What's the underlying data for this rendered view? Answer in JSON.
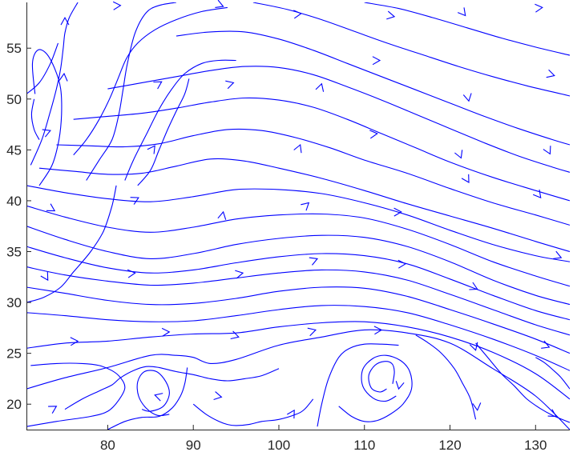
{
  "chart_data": {
    "type": "streamline",
    "title": "",
    "xlabel": "",
    "ylabel": "",
    "xlim": [
      70.5,
      134
    ],
    "ylim": [
      17.5,
      59.5
    ],
    "x_ticks": [
      80,
      90,
      100,
      110,
      120,
      130
    ],
    "y_ticks": [
      20,
      25,
      30,
      35,
      40,
      45,
      50,
      55
    ],
    "grid": false,
    "color": "#0000ff",
    "series": [
      {
        "x": [
          70.5,
          75,
          80,
          85,
          88,
          90,
          92,
          95,
          100,
          105,
          110,
          115,
          120,
          125,
          130,
          134
        ],
        "y": [
          21.5,
          22.6,
          23.6,
          24.8,
          24.8,
          24.6,
          24.0,
          24.4,
          25.8,
          26.6,
          27.3,
          27.0,
          26.0,
          23.5,
          20.8,
          17.5
        ]
      },
      {
        "x": [
          70.5,
          75,
          80,
          85,
          90,
          95,
          100,
          105,
          110,
          115,
          120,
          125,
          130,
          134
        ],
        "y": [
          25.5,
          26.0,
          26.2,
          26.6,
          26.9,
          27.0,
          27.6,
          28.0,
          28.1,
          27.6,
          26.6,
          25.1,
          23.0,
          20.5
        ]
      },
      {
        "x": [
          70.5,
          75,
          80,
          85,
          90,
          95,
          100,
          105,
          110,
          115,
          120,
          125,
          130,
          134
        ],
        "y": [
          29.0,
          28.7,
          28.3,
          28.1,
          28.2,
          28.7,
          29.3,
          29.7,
          29.6,
          29.0,
          27.8,
          26.4,
          24.8,
          23.3
        ]
      },
      {
        "x": [
          70.5,
          75,
          80,
          85,
          90,
          95,
          100,
          105,
          110,
          115,
          120,
          125,
          130,
          134
        ],
        "y": [
          31.5,
          30.9,
          30.2,
          29.8,
          29.9,
          30.4,
          31.1,
          31.5,
          31.4,
          30.6,
          29.3,
          27.9,
          26.4,
          25.0
        ]
      },
      {
        "x": [
          70.5,
          75,
          80,
          85,
          90,
          95,
          100,
          105,
          110,
          115,
          120,
          125,
          130,
          134
        ],
        "y": [
          33.5,
          32.7,
          32.1,
          31.7,
          31.9,
          32.4,
          32.9,
          33.2,
          33.0,
          32.2,
          30.8,
          29.3,
          27.8,
          26.8
        ]
      },
      {
        "x": [
          70.5,
          75,
          80,
          85,
          90,
          95,
          100,
          105,
          110,
          115,
          120,
          125,
          130,
          134
        ],
        "y": [
          35.5,
          34.4,
          33.4,
          32.9,
          33.2,
          33.9,
          34.5,
          34.8,
          34.6,
          33.8,
          32.3,
          30.7,
          29.2,
          28.3
        ]
      },
      {
        "x": [
          70.5,
          75,
          80,
          85,
          90,
          95,
          100,
          105,
          110,
          115,
          120,
          125,
          130,
          134
        ],
        "y": [
          37.5,
          36.2,
          35.0,
          34.3,
          34.8,
          35.7,
          36.3,
          36.6,
          36.4,
          35.5,
          34.0,
          32.2,
          30.7,
          29.8
        ]
      },
      {
        "x": [
          70.5,
          75,
          80,
          85,
          90,
          95,
          100,
          105,
          110,
          115,
          120,
          125,
          130,
          134
        ],
        "y": [
          39.5,
          38.4,
          37.4,
          36.9,
          37.4,
          38.2,
          38.6,
          38.7,
          38.3,
          37.2,
          35.7,
          34.0,
          32.6,
          31.6
        ]
      },
      {
        "x": [
          70.5,
          75,
          80,
          85,
          90,
          95,
          100,
          105,
          110,
          115,
          120,
          125,
          130,
          134
        ],
        "y": [
          41.5,
          40.8,
          40.2,
          39.9,
          40.4,
          41.1,
          41.1,
          40.7,
          39.8,
          38.6,
          37.1,
          35.7,
          34.6,
          34.0
        ]
      },
      {
        "x": [
          72,
          76,
          80,
          84,
          88,
          92,
          96,
          100,
          105,
          110,
          115,
          120,
          125,
          130,
          134
        ],
        "y": [
          43.2,
          42.9,
          42.6,
          42.7,
          43.4,
          44.1,
          43.9,
          43.2,
          42.2,
          41.0,
          39.7,
          38.5,
          37.3,
          36.0,
          35.0
        ]
      },
      {
        "x": [
          74,
          78,
          82,
          86,
          90,
          94,
          98,
          102,
          106,
          110,
          115,
          120,
          125,
          130,
          134
        ],
        "y": [
          45.5,
          45.4,
          45.3,
          45.6,
          46.4,
          47.0,
          46.9,
          46.2,
          45.2,
          44.0,
          42.7,
          41.2,
          39.8,
          38.6,
          37.6
        ]
      },
      {
        "x": [
          76,
          80,
          84,
          88,
          92,
          96,
          100,
          104,
          108,
          112,
          116,
          120,
          125,
          130,
          134
        ],
        "y": [
          48.0,
          48.3,
          48.6,
          49.1,
          49.7,
          50.1,
          49.9,
          49.2,
          48.0,
          46.6,
          45.2,
          43.8,
          42.3,
          41.0,
          40.0
        ]
      },
      {
        "x": [
          80,
          84,
          88,
          92,
          96,
          100,
          104,
          108,
          112,
          116,
          120,
          124,
          128,
          132,
          134
        ],
        "y": [
          51.0,
          51.6,
          52.2,
          52.8,
          53.2,
          53.1,
          52.4,
          51.2,
          49.9,
          48.5,
          47.1,
          45.7,
          44.4,
          43.3,
          42.8
        ]
      },
      {
        "x": [
          88,
          92,
          96,
          100,
          104,
          108,
          112,
          116,
          120,
          124,
          128,
          132,
          134
        ],
        "y": [
          56.2,
          56.6,
          56.6,
          55.9,
          54.8,
          53.5,
          52.2,
          50.9,
          49.6,
          48.3,
          47.1,
          46.0,
          45.5
        ]
      },
      {
        "x": [
          97,
          101,
          105,
          109,
          113,
          117,
          121,
          125,
          129,
          133,
          134
        ],
        "y": [
          59.5,
          58.8,
          57.8,
          56.6,
          55.4,
          54.3,
          53.2,
          52.2,
          51.3,
          50.5,
          50.3
        ]
      },
      {
        "x": [
          110,
          114,
          118,
          122,
          126,
          130,
          134
        ],
        "y": [
          59.5,
          58.9,
          58.0,
          57.0,
          56.0,
          55.1,
          54.3
        ]
      },
      {
        "x": [
          70.5,
          72.5,
          74.5,
          76,
          78,
          79.5,
          80.5,
          81
        ],
        "y": [
          30.0,
          30.5,
          31.5,
          33,
          35,
          37,
          39.5,
          41.5
        ]
      },
      {
        "x": [
          71,
          72.3,
          73.2,
          74,
          74.5,
          74.8,
          75,
          75.5,
          76.5
        ],
        "y": [
          43.5,
          46,
          48.5,
          51,
          53,
          55,
          56.5,
          58,
          59.5
        ]
      },
      {
        "x": [
          72,
          73.5,
          74.3,
          74.6,
          74.5,
          73.8,
          72.8,
          71.8,
          71.2,
          71.5
        ],
        "y": [
          41.5,
          43.5,
          46,
          48.5,
          51,
          53,
          54.5,
          54.8,
          53.5,
          50.5
        ]
      },
      {
        "x": [
          70.5,
          72,
          73.3,
          74.2
        ],
        "y": [
          50.5,
          51.6,
          53.5,
          55.5
        ]
      },
      {
        "x": [
          72,
          71.4,
          71.1,
          71.4
        ],
        "y": [
          46.0,
          47.0,
          48.5,
          50.0
        ]
      },
      {
        "x": [
          76,
          77.5,
          79,
          80.2,
          81.2,
          82.2,
          83.5,
          85.5,
          88,
          91,
          94
        ],
        "y": [
          44.5,
          46,
          48,
          50,
          52,
          54,
          55.5,
          56.8,
          57.8,
          58.6,
          59.0
        ]
      },
      {
        "x": [
          77.5,
          79,
          80.5,
          81.3,
          81.8,
          82.3,
          83.2,
          84.5,
          86,
          88
        ],
        "y": [
          42.0,
          44,
          46,
          48.5,
          51,
          53.5,
          56.5,
          58.5,
          59.2,
          59.5
        ]
      },
      {
        "x": [
          82,
          83,
          84.5,
          86,
          87.5,
          89,
          91,
          93,
          95
        ],
        "y": [
          42.0,
          44,
          46.5,
          49,
          51,
          52.5,
          53.5,
          53.8,
          53.8
        ]
      },
      {
        "x": [
          83.5,
          85,
          86,
          87,
          88,
          89,
          89.5
        ],
        "y": [
          41.5,
          43,
          45,
          47,
          48.8,
          50.5,
          52
        ]
      },
      {
        "x": [
          75,
          77,
          79,
          80.5,
          81.5,
          83,
          84.5,
          86,
          88,
          90,
          92,
          94,
          96,
          98,
          100
        ],
        "y": [
          19.5,
          20.5,
          21.3,
          21.9,
          22.6,
          23.3,
          23.7,
          23.6,
          23.2,
          22.9,
          22.5,
          22.3,
          22.5,
          22.8,
          23.5
        ]
      },
      {
        "x": [
          70.5,
          74,
          78,
          80,
          81.2,
          82,
          81.5,
          80.5,
          79,
          77,
          74,
          71
        ],
        "y": [
          17.8,
          18.3,
          18.8,
          19.3,
          20.3,
          21.6,
          22.6,
          23.3,
          23.8,
          24.0,
          24.0,
          23.8
        ]
      },
      {
        "x": [
          84,
          85,
          86.5,
          87.2,
          86.8,
          85.7,
          84.3,
          83.5,
          83.6,
          84.5,
          85.8,
          87.2
        ],
        "y": [
          19.5,
          19.3,
          19.8,
          21,
          22.2,
          23.2,
          23.2,
          22.2,
          20.8,
          19.6,
          18.9,
          19.0
        ]
      },
      {
        "x": [
          80,
          82,
          84,
          86,
          87.5,
          88.5,
          89,
          89.3
        ],
        "y": [
          17.5,
          18.3,
          18.7,
          18.8,
          19.6,
          20.8,
          22,
          23.6
        ]
      },
      {
        "x": [
          90,
          91.5,
          93,
          94,
          95,
          96.5,
          98,
          100,
          102,
          103,
          104
        ],
        "y": [
          20.0,
          19.0,
          18.3,
          18.0,
          17.9,
          18.0,
          18.3,
          18.5,
          19.0,
          19.5,
          20.5
        ]
      },
      {
        "x": [
          107,
          108.5,
          110,
          111.5,
          113,
          114.5,
          115.5,
          115.3,
          114.2,
          112.5,
          111,
          109.8,
          109.8,
          111,
          112.5,
          113.7
        ],
        "y": [
          19.8,
          18.8,
          18.3,
          18.4,
          19.0,
          20.0,
          21.5,
          23.2,
          24.3,
          24.8,
          24.5,
          23.4,
          21.8,
          20.6,
          20.3,
          20.8
        ]
      },
      {
        "x": [
          113.3,
          113.5,
          113.2,
          112.3,
          111.2,
          110.5,
          110.8,
          111.8,
          112.6
        ],
        "y": [
          22.0,
          23.2,
          24.0,
          24.2,
          23.8,
          22.8,
          21.6,
          21.2,
          21.5
        ]
      },
      {
        "x": [
          116,
          117.5,
          119,
          120.5,
          121.5,
          122.4,
          123
        ],
        "y": [
          26.8,
          26.0,
          25.0,
          23.5,
          22.0,
          20.5,
          18.5
        ]
      },
      {
        "x": [
          104.5,
          105,
          105.8,
          107,
          108.3,
          110,
          112,
          114
        ],
        "y": [
          17.8,
          20,
          22.5,
          24.6,
          25.5,
          25.9,
          25.9,
          25.8
        ]
      },
      {
        "x": [
          123,
          124.5,
          126,
          127.5,
          129,
          130.5,
          132,
          134
        ],
        "y": [
          26.0,
          24.5,
          23.0,
          21.8,
          20.5,
          19.6,
          18.9,
          18.2
        ]
      },
      {
        "x": [
          130,
          131,
          132,
          133,
          134
        ],
        "y": [
          24.6,
          24.1,
          23.4,
          22.6,
          21.5
        ]
      }
    ],
    "arrows": [
      {
        "x": 75.0,
        "y": 58.0,
        "dx": 0,
        "dy": 1
      },
      {
        "x": 74.9,
        "y": 52.5,
        "dx": 0.1,
        "dy": 1
      },
      {
        "x": 73.3,
        "y": 46.9,
        "dx": 1,
        "dy": 0.4
      },
      {
        "x": 81.5,
        "y": 59.2,
        "dx": 1,
        "dy": 0.05
      },
      {
        "x": 86.3,
        "y": 51.7,
        "dx": 1,
        "dy": 0.6
      },
      {
        "x": 85.5,
        "y": 45.4,
        "dx": 0.7,
        "dy": 1
      },
      {
        "x": 83.6,
        "y": 40.3,
        "dx": 1,
        "dy": 0.5
      },
      {
        "x": 73.8,
        "y": 39.0,
        "dx": 1,
        "dy": -0.6
      },
      {
        "x": 73.0,
        "y": 32.2,
        "dx": 0.6,
        "dy": -1
      },
      {
        "x": 76.5,
        "y": 26.2,
        "dx": 1,
        "dy": 0.05
      },
      {
        "x": 74.0,
        "y": 19.8,
        "dx": 1,
        "dy": 0.6
      },
      {
        "x": 85.5,
        "y": 20.9,
        "dx": -1,
        "dy": 0.3
      },
      {
        "x": 87.2,
        "y": 27.1,
        "dx": 1,
        "dy": 0.05
      },
      {
        "x": 95.3,
        "y": 26.6,
        "dx": 1,
        "dy": -0.3
      },
      {
        "x": 95.8,
        "y": 32.9,
        "dx": 1,
        "dy": 0.2
      },
      {
        "x": 83.2,
        "y": 32.9,
        "dx": 1,
        "dy": 0.1
      },
      {
        "x": 93.5,
        "y": 38.9,
        "dx": 0.2,
        "dy": 1
      },
      {
        "x": 94.7,
        "y": 51.6,
        "dx": 1,
        "dy": 0.3
      },
      {
        "x": 93.5,
        "y": 59.1,
        "dx": 1,
        "dy": -0.4
      },
      {
        "x": 102.6,
        "y": 58.4,
        "dx": 1,
        "dy": 0.1
      },
      {
        "x": 105.0,
        "y": 51.5,
        "dx": 0.3,
        "dy": 1
      },
      {
        "x": 102.5,
        "y": 45.5,
        "dx": 0.4,
        "dy": 1
      },
      {
        "x": 103.5,
        "y": 39.8,
        "dx": 1,
        "dy": 0.9
      },
      {
        "x": 104.5,
        "y": 34.3,
        "dx": 1,
        "dy": 0.4
      },
      {
        "x": 104.3,
        "y": 27.3,
        "dx": 1,
        "dy": 0.3
      },
      {
        "x": 101.8,
        "y": 19.4,
        "dx": 0.6,
        "dy": 1
      },
      {
        "x": 93.3,
        "y": 20.7,
        "dx": 1,
        "dy": -0.2
      },
      {
        "x": 112.0,
        "y": 27.3,
        "dx": 1,
        "dy": 0.05
      },
      {
        "x": 114.0,
        "y": 21.5,
        "dx": -0.2,
        "dy": -1
      },
      {
        "x": 114.8,
        "y": 33.8,
        "dx": 1,
        "dy": 0.05
      },
      {
        "x": 114.3,
        "y": 38.9,
        "dx": 1,
        "dy": 0.02
      },
      {
        "x": 111.5,
        "y": 46.6,
        "dx": 1,
        "dy": 0.1
      },
      {
        "x": 111.8,
        "y": 53.8,
        "dx": 1,
        "dy": 0.02
      },
      {
        "x": 113.5,
        "y": 58.1,
        "dx": 1,
        "dy": -0.2
      },
      {
        "x": 121.8,
        "y": 58.2,
        "dx": 0.8,
        "dy": -1
      },
      {
        "x": 122.2,
        "y": 49.8,
        "dx": 0.2,
        "dy": -1
      },
      {
        "x": 121.3,
        "y": 44.2,
        "dx": 0.4,
        "dy": -1
      },
      {
        "x": 122.2,
        "y": 41.8,
        "dx": 0.6,
        "dy": -1
      },
      {
        "x": 123.2,
        "y": 31.3,
        "dx": 1,
        "dy": -0.5
      },
      {
        "x": 123.0,
        "y": 25.3,
        "dx": 0.3,
        "dy": -1
      },
      {
        "x": 123.2,
        "y": 19.4,
        "dx": 0.1,
        "dy": -1
      },
      {
        "x": 130.8,
        "y": 59.0,
        "dx": 1,
        "dy": 0.1
      },
      {
        "x": 132.2,
        "y": 52.3,
        "dx": 1,
        "dy": -0.3
      },
      {
        "x": 131.7,
        "y": 44.6,
        "dx": 0.5,
        "dy": -1
      },
      {
        "x": 130.6,
        "y": 40.3,
        "dx": 0.8,
        "dy": -1
      },
      {
        "x": 133.0,
        "y": 34.4,
        "dx": 1,
        "dy": -0.4
      },
      {
        "x": 131.6,
        "y": 25.6,
        "dx": 1,
        "dy": -0.4
      },
      {
        "x": 132.4,
        "y": 18.8,
        "dx": 1,
        "dy": -0.6
      }
    ]
  }
}
